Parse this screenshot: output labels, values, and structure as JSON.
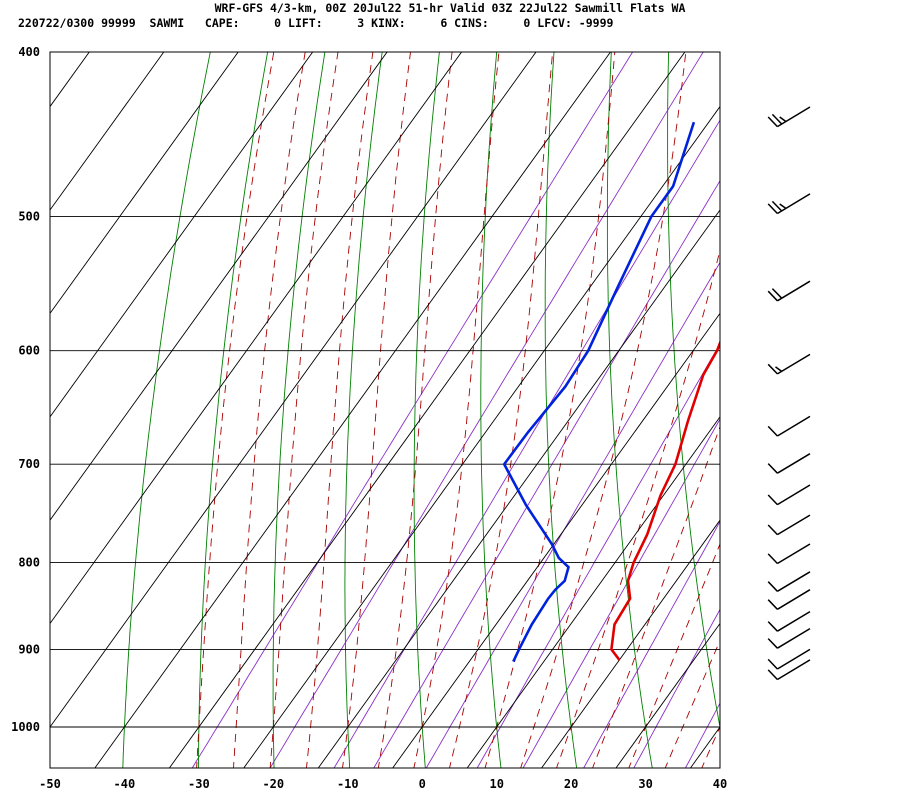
{
  "header": {
    "title": "WRF-GFS 4/3-km, 00Z 20Jul22 51-hr Valid 03Z 22Jul22 Sawmill Flats WA",
    "stats_line": "220722/0300 99999  SAWMI   CAPE:     0 LIFT:     3 KINX:     6 CINS:     0 LFCV: -9999"
  },
  "colors": {
    "temperature": "#e00000",
    "dewpoint": "#0022dd",
    "isotherm": "#000000",
    "dry_adiabat": "#008000",
    "moist_adiabat": "#aa0000",
    "mixing_ratio": "#8b30c8",
    "wind_barb": "#000000"
  },
  "chart_data": {
    "type": "line",
    "diagram": "skew-T log-P sounding",
    "x_axis": {
      "range": [
        -50,
        40
      ],
      "ticks": [
        -50,
        -40,
        -30,
        -20,
        -10,
        0,
        10,
        20,
        30,
        40
      ],
      "unit": "°C"
    },
    "y_axis": {
      "range": [
        1040,
        400
      ],
      "scale": "log",
      "ticks": [
        400,
        500,
        600,
        700,
        800,
        900,
        1000
      ],
      "unit": "hPa"
    },
    "grid": true,
    "series": [
      {
        "key": "temperature",
        "points": [
          [
            913,
            20.0
          ],
          [
            900,
            17.9
          ],
          [
            870,
            15.9
          ],
          [
            840,
            15.5
          ],
          [
            820,
            13.5
          ],
          [
            800,
            12.5
          ],
          [
            770,
            11.6
          ],
          [
            730,
            9.6
          ],
          [
            700,
            8.6
          ],
          [
            660,
            6.1
          ],
          [
            620,
            3.7
          ],
          [
            600,
            3.2
          ],
          [
            560,
            1.0
          ],
          [
            500,
            -2.9
          ],
          [
            480,
            -4.6
          ],
          [
            440,
            -10.2
          ]
        ]
      },
      {
        "key": "dewpoint",
        "points": [
          [
            915,
            5.9
          ],
          [
            900,
            5.5
          ],
          [
            870,
            4.8
          ],
          [
            840,
            4.5
          ],
          [
            830,
            4.6
          ],
          [
            820,
            5.0
          ],
          [
            805,
            4.2
          ],
          [
            795,
            2.0
          ],
          [
            780,
            -0.3
          ],
          [
            740,
            -7.5
          ],
          [
            700,
            -14.4
          ],
          [
            670,
            -14.3
          ],
          [
            630,
            -13.7
          ],
          [
            600,
            -14.1
          ],
          [
            550,
            -16.3
          ],
          [
            500,
            -18.6
          ],
          [
            480,
            -18.6
          ],
          [
            440,
            -22.0
          ]
        ]
      }
    ],
    "wind_barbs": [
      {
        "pressure": 431,
        "speed_kt": 25
      },
      {
        "pressure": 485,
        "speed_kt": 25
      },
      {
        "pressure": 546,
        "speed_kt": 20
      },
      {
        "pressure": 603,
        "speed_kt": 15
      },
      {
        "pressure": 656,
        "speed_kt": 10
      },
      {
        "pressure": 690,
        "speed_kt": 10
      },
      {
        "pressure": 720,
        "speed_kt": 10
      },
      {
        "pressure": 750,
        "speed_kt": 10
      },
      {
        "pressure": 780,
        "speed_kt": 10
      },
      {
        "pressure": 810,
        "speed_kt": 10
      },
      {
        "pressure": 830,
        "speed_kt": 10
      },
      {
        "pressure": 855,
        "speed_kt": 10
      },
      {
        "pressure": 875,
        "speed_kt": 10
      },
      {
        "pressure": 900,
        "speed_kt": 10
      },
      {
        "pressure": 913,
        "speed_kt": 10
      }
    ]
  }
}
